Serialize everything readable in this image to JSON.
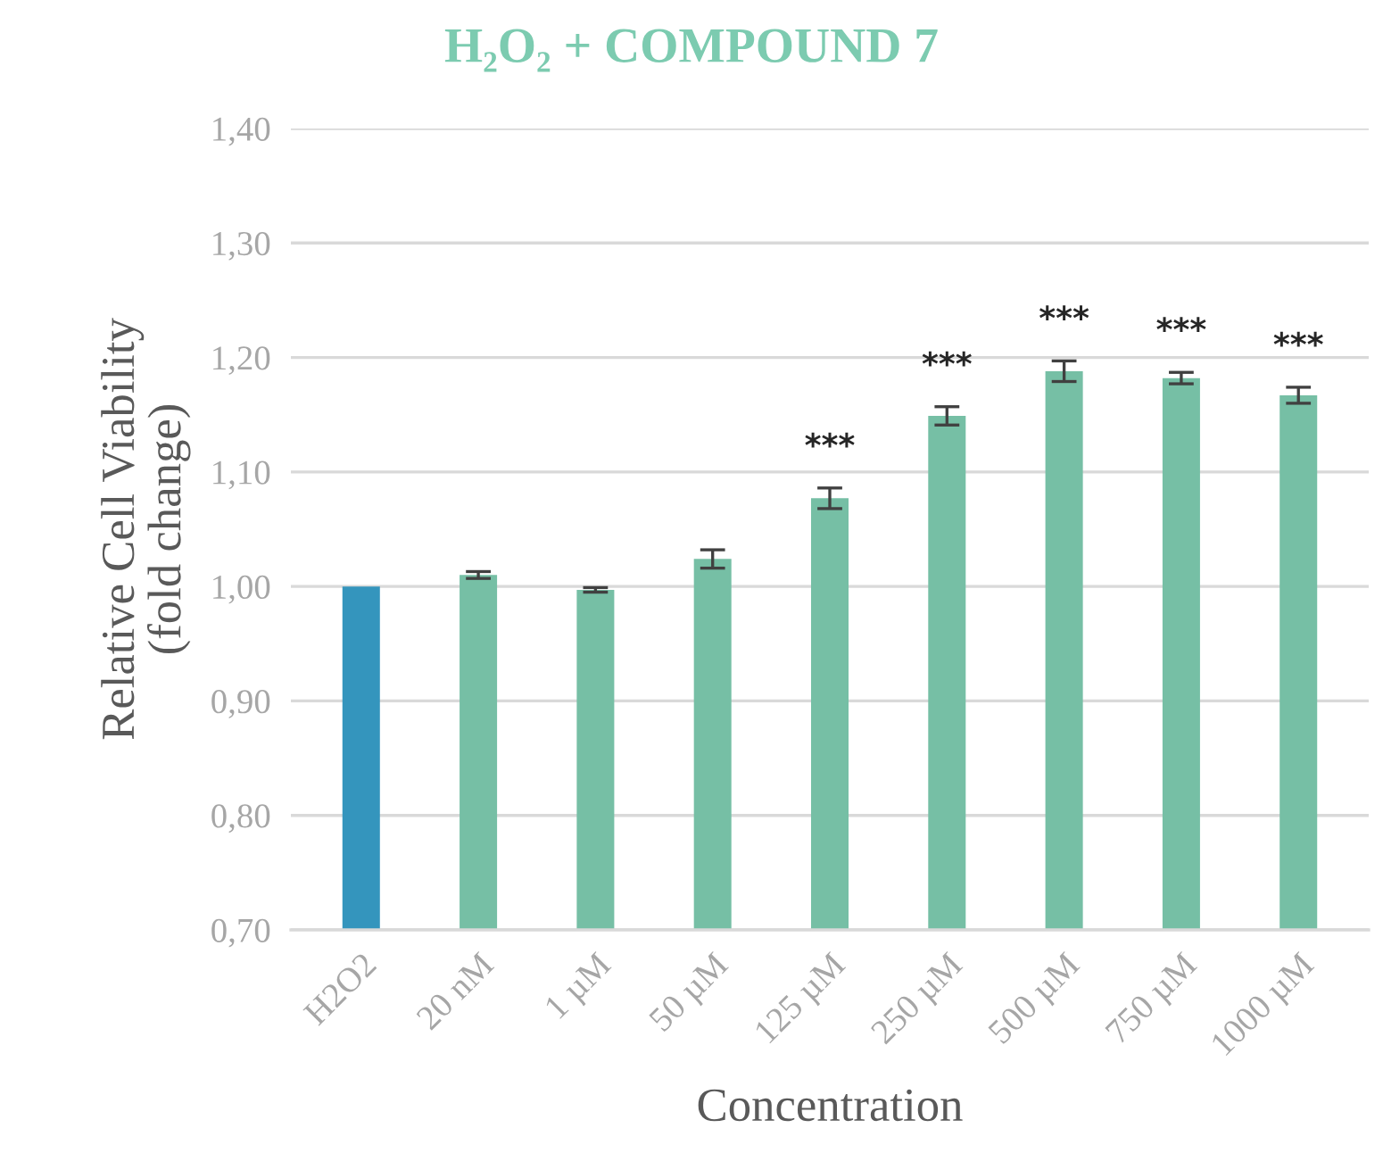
{
  "chart_data": {
    "type": "bar",
    "title": "H₂O₂ + COMPOUND 7",
    "xlabel": "Concentration",
    "ylabel": "Relative Cell Viability\n(fold change)",
    "categories": [
      "H2O2",
      "20 nM",
      "1 µM",
      "50 µM",
      "125 µM",
      "250 µM",
      "500 µM",
      "750 µM",
      "1000 µM"
    ],
    "values": [
      1.0,
      1.01,
      0.997,
      1.024,
      1.077,
      1.149,
      1.188,
      1.182,
      1.167
    ],
    "errors": [
      null,
      0.003,
      0.002,
      0.008,
      0.009,
      0.008,
      0.009,
      0.005,
      0.007
    ],
    "colors": [
      "#3495bd",
      "#76bfa5",
      "#76bfa5",
      "#76bfa5",
      "#76bfa5",
      "#76bfa5",
      "#76bfa5",
      "#76bfa5",
      "#76bfa5"
    ],
    "ylim": [
      0.7,
      1.4
    ],
    "yticks": [
      {
        "value": 0.7,
        "label": "0,70"
      },
      {
        "value": 0.8,
        "label": "0,80"
      },
      {
        "value": 0.9,
        "label": "0,90"
      },
      {
        "value": 1.0,
        "label": "1,00"
      },
      {
        "value": 1.1,
        "label": "1,10"
      },
      {
        "value": 1.2,
        "label": "1,20"
      },
      {
        "value": 1.3,
        "label": "1,30"
      },
      {
        "value": 1.4,
        "label": "1,40"
      }
    ],
    "grid": "y",
    "annotations": [
      {
        "text": "***",
        "x": "125 µM",
        "y": 1.077
      },
      {
        "text": "***",
        "x": "250 µM",
        "y": 1.149
      },
      {
        "text": "***",
        "x": "500 µM",
        "y": 1.188
      },
      {
        "text": "***",
        "x": "750 µM",
        "y": 1.182
      },
      {
        "text": "***",
        "x": "1000 µM",
        "y": 1.167
      }
    ]
  }
}
